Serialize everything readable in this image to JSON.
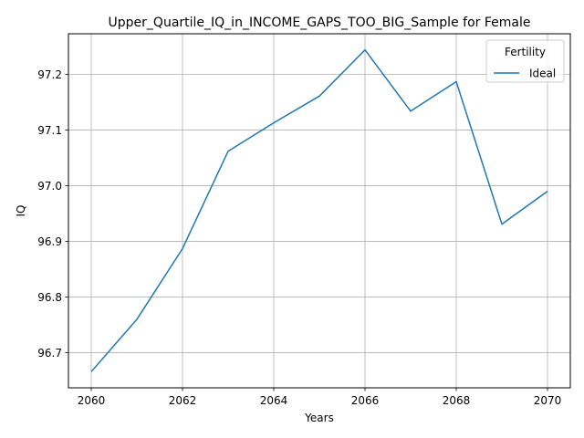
{
  "chart_data": {
    "type": "line",
    "title": "Upper_Quartile_IQ_in_INCOME_GAPS_TOO_BIG_Sample for Female",
    "xlabel": "Years",
    "ylabel": "IQ",
    "x": [
      2060,
      2061,
      2062,
      2063,
      2064,
      2065,
      2066,
      2067,
      2068,
      2069,
      2070
    ],
    "series": [
      {
        "name": "Ideal",
        "color": "#1f77b4",
        "values": [
          96.666,
          96.76,
          96.887,
          97.062,
          97.113,
          97.161,
          97.244,
          97.134,
          97.187,
          96.931,
          96.99
        ]
      }
    ],
    "xlim": [
      2059.5,
      2070.5
    ],
    "ylim": [
      96.637,
      97.273
    ],
    "xticks": [
      2060,
      2062,
      2064,
      2066,
      2068,
      2070
    ],
    "yticks": [
      96.7,
      96.8,
      96.9,
      97.0,
      97.1,
      97.2
    ],
    "ytick_labels": [
      "96.7",
      "96.8",
      "96.9",
      "97.0",
      "97.1",
      "97.2"
    ],
    "grid": true,
    "legend": {
      "title": "Fertility",
      "placement": "top-right"
    }
  }
}
